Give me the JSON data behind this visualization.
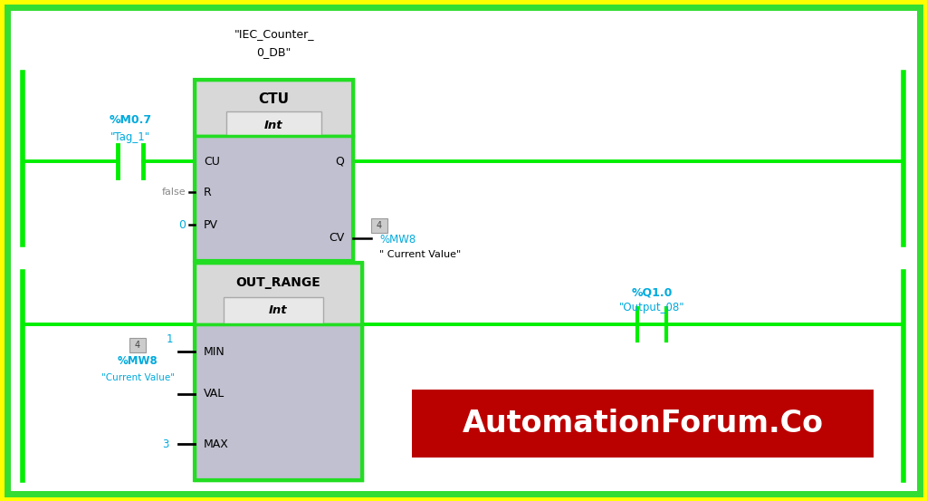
{
  "bg_color": "#ffff00",
  "inner_bg": "#ffffff",
  "border_color": "#33dd33",
  "line_color": "#00ee00",
  "text_cyan": "#00aadd",
  "text_dark": "#222222",
  "text_gray": "#888888",
  "block_body_bg": "#c0c0d0",
  "block_header_bg": "#d8d8d8",
  "int_box_bg": "#e8e8e8",
  "block_border": "#22dd22",
  "watermark_bg": "#bb0000",
  "watermark_fg": "#ffffff",
  "watermark_text": "AutomationForum.Co",
  "iec_label1": "\"IEC_Counter_",
  "iec_label2": "0_DB\"",
  "ctu_title": "CTU",
  "ctu_type": "Int",
  "ctu_cu": "CU",
  "ctu_r": "R",
  "ctu_pv": "PV",
  "ctu_q": "Q",
  "ctu_cv": "CV",
  "mo7_label": "%M0.7",
  "tag1_label": "\"Tag_1\"",
  "false_label": "false",
  "zero_label": "0",
  "mw8_num": "4",
  "mw8_tag": "%MW8",
  "cv_value_label": "\" Current Value\"",
  "out_range_title": "OUT_RANGE",
  "out_range_type": "Int",
  "or_min": "MIN",
  "or_val": "VAL",
  "or_max": "MAX",
  "min_num": "1",
  "val_num": "4",
  "val_mw8": "%MW8",
  "val_cv": "\"Current Value\"",
  "max_num": "3",
  "q1_label": "%Q1.0",
  "output_label": "\"Output_08\""
}
